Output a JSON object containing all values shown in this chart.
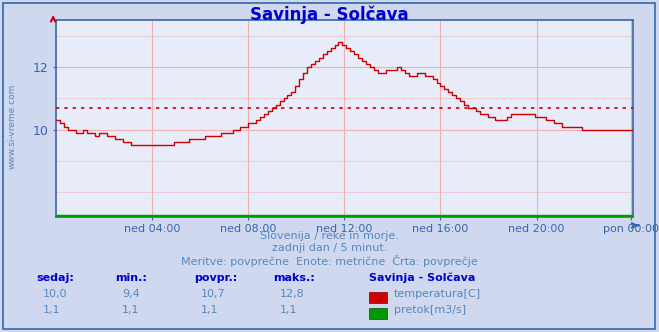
{
  "title": "Savinja - Solčava",
  "title_color": "#0000cc",
  "bg_color": "#d0d8f0",
  "plot_bg_color": "#e8ecf8",
  "border_color": "#3366aa",
  "grid_color": "#f0b0b0",
  "x_tick_labels": [
    "ned 04:00",
    "ned 08:00",
    "ned 12:00",
    "ned 16:00",
    "ned 20:00",
    "pon 00:00"
  ],
  "x_tick_positions": [
    48,
    96,
    144,
    192,
    240,
    287
  ],
  "y_ticks": [
    10,
    12
  ],
  "ylim": [
    7.2,
    13.5
  ],
  "xlim": [
    0,
    288
  ],
  "avg_line_value": 10.7,
  "avg_line_color": "#cc0000",
  "temp_line_color": "#cc0000",
  "flow_line_color": "#009900",
  "footer_line1": "Slovenija / reke in morje.",
  "footer_line2": "zadnji dan / 5 minut.",
  "footer_line3": "Meritve: povprečne  Enote: metrične  Črta: povprečje",
  "footer_color": "#5588bb",
  "watermark": "www.si-vreme.com",
  "watermark_color": "#5588bb",
  "table_headers": [
    "sedaj:",
    "min.:",
    "povpr.:",
    "maks.:"
  ],
  "table_header_color": "#0000cc",
  "table_values_temp": [
    "10,0",
    "9,4",
    "10,7",
    "12,8"
  ],
  "table_values_flow": [
    "1,1",
    "1,1",
    "1,1",
    "1,1"
  ],
  "legend_title": "Savinja - Solčava",
  "legend_temp": "temperatura[C]",
  "legend_flow": "pretok[m3/s]",
  "temp_data": [
    10.3,
    10.2,
    10.1,
    10.0,
    10.0,
    9.9,
    9.9,
    10.0,
    9.9,
    9.9,
    9.8,
    9.9,
    9.9,
    9.8,
    9.8,
    9.7,
    9.7,
    9.6,
    9.6,
    9.5,
    9.5,
    9.5,
    9.5,
    9.5,
    9.5,
    9.5,
    9.5,
    9.5,
    9.5,
    9.5,
    9.6,
    9.6,
    9.6,
    9.6,
    9.7,
    9.7,
    9.7,
    9.7,
    9.8,
    9.8,
    9.8,
    9.8,
    9.9,
    9.9,
    9.9,
    10.0,
    10.0,
    10.1,
    10.1,
    10.2,
    10.2,
    10.3,
    10.4,
    10.5,
    10.6,
    10.7,
    10.8,
    10.9,
    11.0,
    11.1,
    11.2,
    11.4,
    11.6,
    11.8,
    12.0,
    12.1,
    12.2,
    12.3,
    12.4,
    12.5,
    12.6,
    12.7,
    12.8,
    12.7,
    12.6,
    12.5,
    12.4,
    12.3,
    12.2,
    12.1,
    12.0,
    11.9,
    11.8,
    11.8,
    11.9,
    11.9,
    11.9,
    12.0,
    11.9,
    11.8,
    11.7,
    11.7,
    11.8,
    11.8,
    11.7,
    11.7,
    11.6,
    11.5,
    11.4,
    11.3,
    11.2,
    11.1,
    11.0,
    10.9,
    10.8,
    10.7,
    10.7,
    10.6,
    10.5,
    10.5,
    10.4,
    10.4,
    10.3,
    10.3,
    10.3,
    10.4,
    10.5,
    10.5,
    10.5,
    10.5,
    10.5,
    10.5,
    10.4,
    10.4,
    10.4,
    10.3,
    10.3,
    10.2,
    10.2,
    10.1,
    10.1,
    10.1,
    10.1,
    10.1,
    10.0,
    10.0,
    10.0,
    10.0,
    10.0,
    10.0,
    10.0,
    10.0,
    10.0,
    10.0,
    10.0,
    10.0,
    10.0,
    10.0
  ],
  "flow_data_value": 1.1
}
